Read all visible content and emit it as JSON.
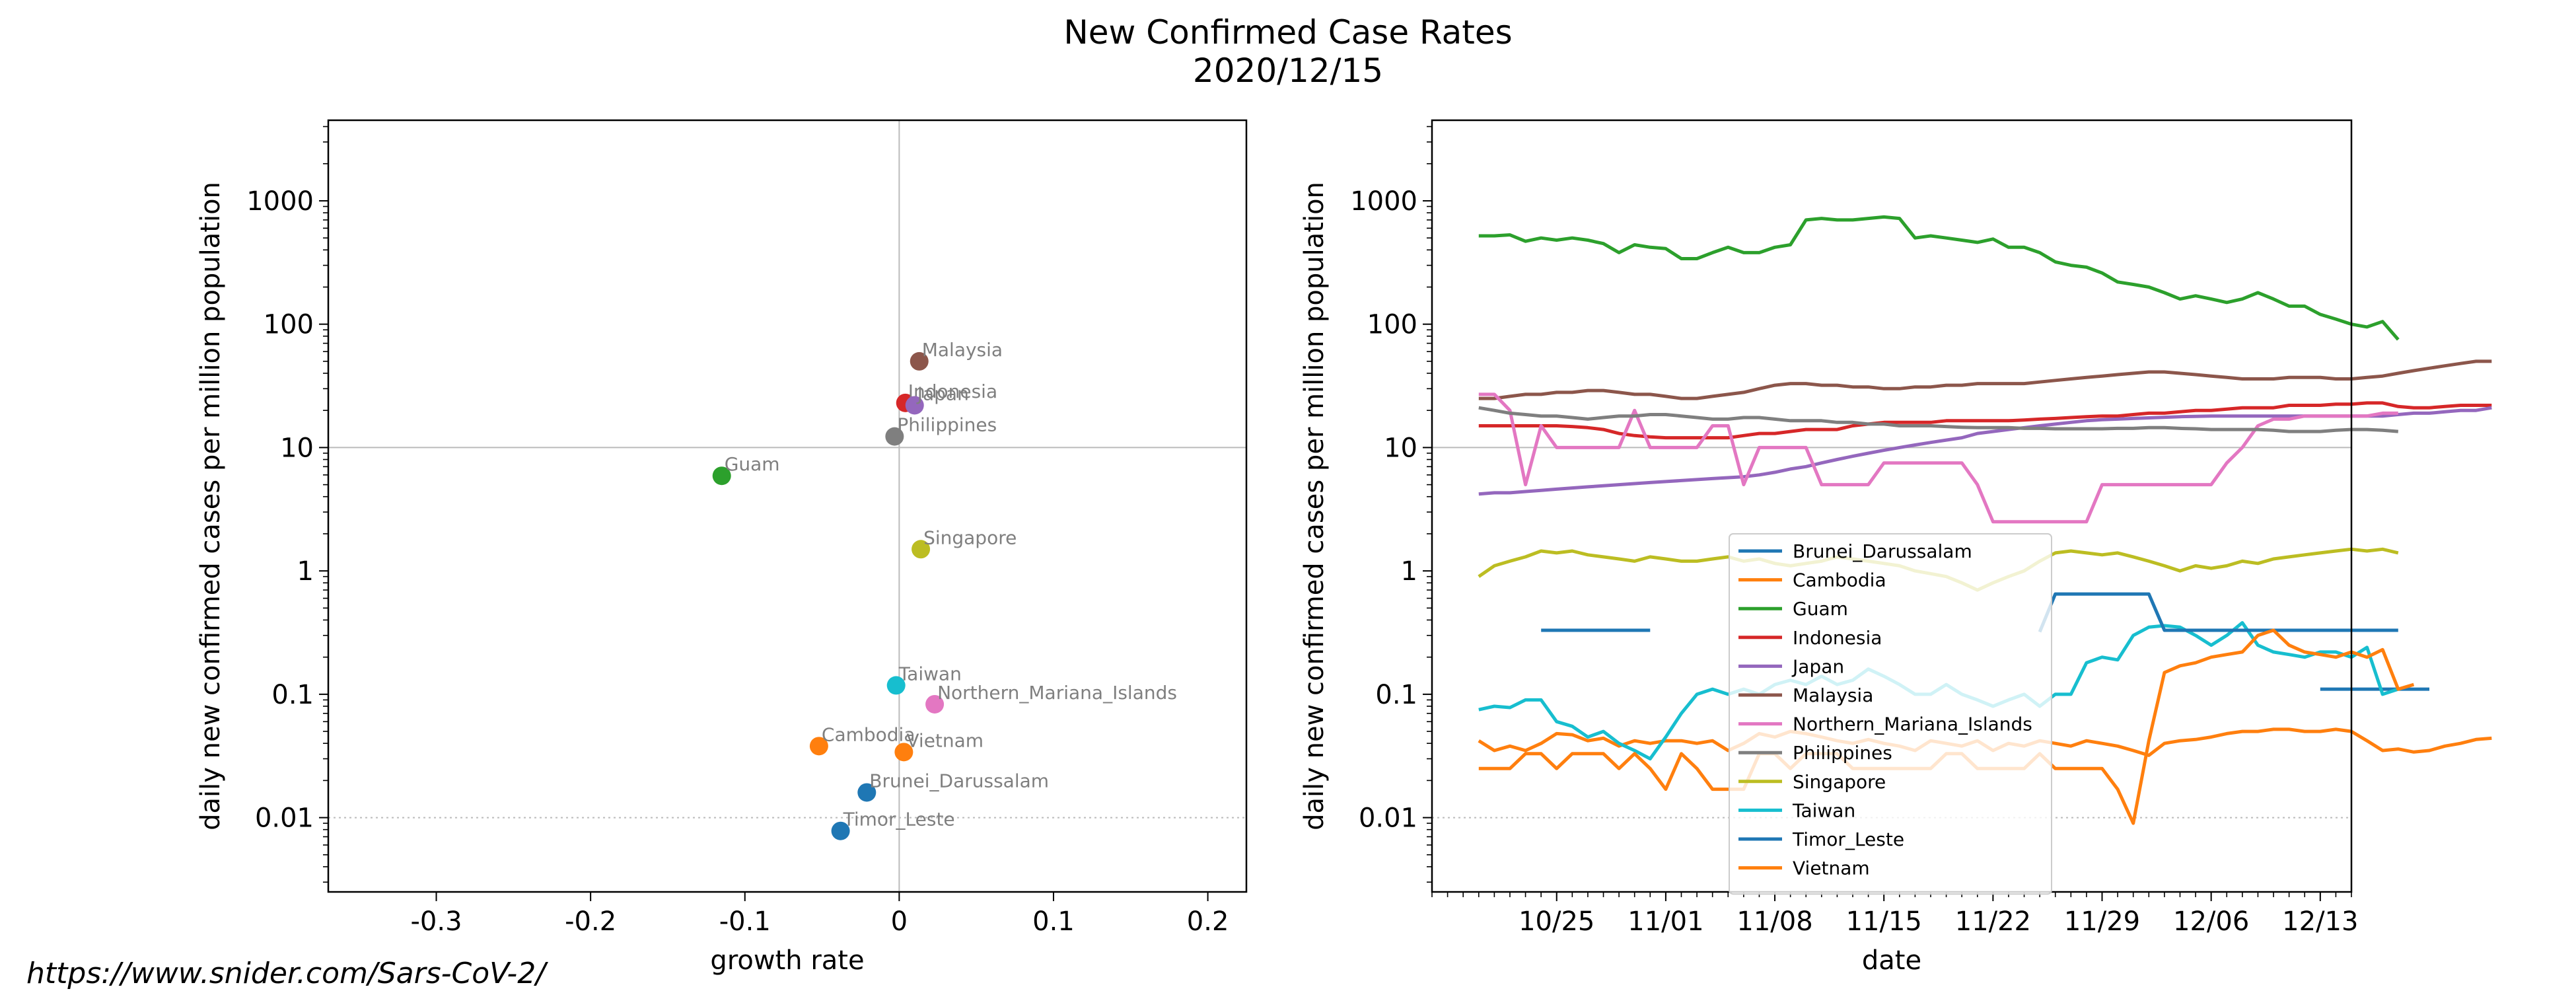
{
  "figure": {
    "title": "New Confirmed Case Rates",
    "subtitle": "2020/12/15",
    "source": "https://www.snider.com/Sars-CoV-2/"
  },
  "chart_data": [
    {
      "type": "scatter",
      "xlabel": "growth rate",
      "ylabel": "daily new confirmed cases per million population",
      "xlim": [
        -0.37,
        0.225
      ],
      "ylim": [
        0.0025,
        4500
      ],
      "yscale": "log",
      "xticks": [
        -0.3,
        -0.2,
        -0.1,
        0,
        0.1,
        0.2
      ],
      "yticks": [
        0.01,
        0.1,
        1,
        10,
        100,
        1000
      ],
      "ytick_labels": [
        "0.01",
        "0.1",
        "1",
        "10",
        "100",
        "1000"
      ],
      "reference_lines": {
        "x": 0,
        "y": 10
      },
      "points": [
        {
          "label": "Malaysia",
          "x": 0.013,
          "y": 50,
          "color": "#8c564b"
        },
        {
          "label": "Indonesia",
          "x": 0.004,
          "y": 23,
          "color": "#d62728"
        },
        {
          "label": "Japan",
          "x": 0.01,
          "y": 22,
          "color": "#9467bd"
        },
        {
          "label": "Philippines",
          "x": -0.003,
          "y": 12.3,
          "color": "#7f7f7f"
        },
        {
          "label": "Guam",
          "x": -0.115,
          "y": 5.9,
          "color": "#2ca02c"
        },
        {
          "label": "Singapore",
          "x": 0.014,
          "y": 1.5,
          "color": "#bcbd22"
        },
        {
          "label": "Taiwan",
          "x": -0.002,
          "y": 0.118,
          "color": "#17becf"
        },
        {
          "label": "Northern_Mariana_Islands",
          "x": 0.023,
          "y": 0.083,
          "color": "#e377c2"
        },
        {
          "label": "Cambodia",
          "x": -0.052,
          "y": 0.038,
          "color": "#ff7f0e"
        },
        {
          "label": "Vietnam",
          "x": 0.003,
          "y": 0.034,
          "color": "#ff7f0e"
        },
        {
          "label": "Brunei_Darussalam",
          "x": -0.021,
          "y": 0.016,
          "color": "#1f77b4"
        },
        {
          "label": "Timor_Leste",
          "x": -0.038,
          "y": 0.0078,
          "color": "#1f77b4"
        }
      ]
    },
    {
      "type": "line",
      "xlabel": "date",
      "ylabel": "daily new confirmed cases per million population",
      "x_start": "2020-10-20",
      "xlim": [
        "2020-10-17",
        "2020-12-15"
      ],
      "ylim": [
        0.0025,
        4500
      ],
      "yscale": "log",
      "xticks": [
        "2020-10-25",
        "2020-11-01",
        "2020-11-08",
        "2020-11-15",
        "2020-11-22",
        "2020-11-29",
        "2020-12-06",
        "2020-12-13"
      ],
      "xtick_labels": [
        "10/25",
        "11/01",
        "11/08",
        "11/15",
        "11/22",
        "11/29",
        "12/06",
        "12/13"
      ],
      "yticks": [
        0.01,
        0.1,
        1,
        10,
        100,
        1000
      ],
      "ytick_labels": [
        "0.01",
        "0.1",
        "1",
        "10",
        "100",
        "1000"
      ],
      "reference_lines": {
        "y": 10
      },
      "legend": "lower-center",
      "series": [
        {
          "name": "Brunei_Darussalam",
          "color": "#1f77b4",
          "values": [
            null,
            null,
            null,
            null,
            0.33,
            0.33,
            0.33,
            0.33,
            0.33,
            0.33,
            0.33,
            0.33,
            null,
            null,
            null,
            null,
            null,
            null,
            null,
            null,
            null,
            null,
            null,
            null,
            null,
            null,
            null,
            null,
            null,
            null,
            null,
            null,
            null,
            null,
            null,
            null,
            null,
            null,
            null,
            null,
            null,
            null,
            null,
            null,
            null,
            null,
            null,
            null,
            null,
            null,
            null,
            null,
            null,
            null,
            0.11,
            0.11,
            0.11,
            0.11,
            0.11,
            0.11,
            0.11,
            0.11,
            null,
            null,
            null,
            null
          ]
        },
        {
          "name": "Cambodia",
          "color": "#ff7f0e",
          "values": [
            0.042,
            0.035,
            0.038,
            0.035,
            0.04,
            0.048,
            0.047,
            0.042,
            0.044,
            0.038,
            0.042,
            0.04,
            0.042,
            0.042,
            0.04,
            0.042,
            0.035,
            0.04,
            0.048,
            0.045,
            0.05,
            0.048,
            0.045,
            0.042,
            0.04,
            0.043,
            0.04,
            0.038,
            0.035,
            0.042,
            0.04,
            0.038,
            0.042,
            0.035,
            0.04,
            0.038,
            0.042,
            0.04,
            0.038,
            0.042,
            0.04,
            0.038,
            0.035,
            0.032,
            0.04,
            0.042,
            0.043,
            0.045,
            0.048,
            0.05,
            0.05,
            0.052,
            0.052,
            0.05,
            0.05,
            0.052,
            0.05,
            0.042,
            0.035,
            0.036,
            0.034,
            0.035,
            0.038,
            0.04,
            0.043,
            0.044
          ]
        },
        {
          "name": "Guam",
          "color": "#2ca02c",
          "values": [
            520,
            520,
            530,
            470,
            500,
            480,
            500,
            480,
            450,
            380,
            440,
            420,
            410,
            340,
            340,
            380,
            420,
            380,
            380,
            420,
            440,
            700,
            720,
            700,
            700,
            720,
            740,
            720,
            500,
            520,
            500,
            480,
            460,
            490,
            420,
            420,
            380,
            320,
            300,
            290,
            260,
            220,
            210,
            200,
            180,
            160,
            170,
            160,
            150,
            160,
            180,
            160,
            140,
            140,
            120,
            110,
            100,
            95,
            105,
            75,
            null,
            null,
            null,
            null,
            null,
            null
          ]
        },
        {
          "name": "Indonesia",
          "color": "#d62728",
          "values": [
            15,
            15,
            15,
            15,
            15,
            15,
            14.8,
            14.5,
            14,
            13,
            12.5,
            12.2,
            12,
            12,
            12,
            12,
            12,
            12.5,
            13,
            13,
            13.5,
            14,
            14,
            14,
            15,
            15.5,
            16,
            16,
            16,
            16,
            16.5,
            16.5,
            16.5,
            16.5,
            16.5,
            16.7,
            17,
            17.2,
            17.5,
            17.8,
            18,
            18,
            18.5,
            19,
            19,
            19.5,
            20,
            20,
            20.5,
            21,
            21,
            21,
            22,
            22,
            22,
            22.5,
            22.5,
            23,
            23,
            21.5,
            21,
            21,
            21.5,
            22,
            22,
            22
          ]
        },
        {
          "name": "Japan",
          "color": "#9467bd",
          "values": [
            4.2,
            4.3,
            4.3,
            4.4,
            4.5,
            4.6,
            4.7,
            4.8,
            4.9,
            5.0,
            5.1,
            5.2,
            5.3,
            5.4,
            5.5,
            5.6,
            5.7,
            5.8,
            6.0,
            6.3,
            6.7,
            7.0,
            7.5,
            8.0,
            8.5,
            9.0,
            9.5,
            10,
            10.5,
            11,
            11.5,
            12,
            13,
            13.5,
            14,
            14.5,
            15,
            15.5,
            16,
            16.5,
            16.8,
            17,
            17.2,
            17.4,
            17.6,
            17.8,
            17.9,
            18,
            18,
            18,
            18,
            18,
            18,
            18,
            18,
            18,
            18,
            18,
            18,
            18.5,
            19,
            19,
            19.5,
            20,
            20,
            21
          ]
        },
        {
          "name": "Malaysia",
          "color": "#8c564b",
          "values": [
            25,
            25,
            26,
            27,
            27,
            28,
            28,
            29,
            29,
            28,
            27,
            27,
            26,
            25,
            25,
            26,
            27,
            28,
            30,
            32,
            33,
            33,
            32,
            32,
            31,
            31,
            30,
            30,
            31,
            31,
            32,
            32,
            33,
            33,
            33,
            33,
            34,
            35,
            36,
            37,
            38,
            39,
            40,
            41,
            41,
            40,
            39,
            38,
            37,
            36,
            36,
            36,
            37,
            37,
            37,
            36,
            36,
            37,
            38,
            40,
            42,
            44,
            46,
            48,
            50,
            50
          ]
        },
        {
          "name": "Northern_Mariana_Islands",
          "color": "#e377c2",
          "values": [
            27,
            27,
            20,
            5,
            15,
            10,
            10,
            10,
            10,
            10,
            20,
            10,
            10,
            10,
            10,
            15,
            15,
            5,
            10,
            10,
            10,
            10,
            5,
            5,
            5,
            5,
            7.5,
            7.5,
            7.5,
            7.5,
            7.5,
            7.5,
            5,
            2.5,
            2.5,
            2.5,
            2.5,
            2.5,
            2.5,
            2.5,
            5,
            5,
            5,
            5,
            5,
            5,
            5,
            5,
            7.5,
            10,
            15,
            17,
            17,
            18,
            18,
            18,
            18,
            18,
            19,
            19,
            null,
            null,
            null,
            null,
            null,
            null
          ]
        },
        {
          "name": "Philippines",
          "color": "#7f7f7f",
          "values": [
            21,
            20,
            19,
            18.5,
            18,
            18,
            17.5,
            17,
            17.5,
            18,
            18,
            18.5,
            18.5,
            18,
            17.5,
            17,
            17,
            17.5,
            17.5,
            17,
            16.5,
            16.5,
            16.5,
            16,
            16,
            15.5,
            15.5,
            15,
            15,
            15,
            14.8,
            14.6,
            14.5,
            14.5,
            14.5,
            14.3,
            14.3,
            14.2,
            14.2,
            14.2,
            14.2,
            14.3,
            14.3,
            14.5,
            14.5,
            14.3,
            14.2,
            14,
            14,
            14,
            14,
            13.8,
            13.5,
            13.5,
            13.5,
            13.8,
            14,
            14,
            13.8,
            13.5,
            null,
            null,
            null,
            null,
            null,
            null
          ]
        },
        {
          "name": "Singapore",
          "color": "#bcbd22",
          "values": [
            0.9,
            1.1,
            1.2,
            1.3,
            1.45,
            1.4,
            1.45,
            1.35,
            1.3,
            1.25,
            1.2,
            1.3,
            1.25,
            1.2,
            1.2,
            1.25,
            1.3,
            1.2,
            1.25,
            1.15,
            1.1,
            1.15,
            1.2,
            1.3,
            1.25,
            1.2,
            1.15,
            1.1,
            1.0,
            0.95,
            0.9,
            0.8,
            0.7,
            0.8,
            0.9,
            1.0,
            1.2,
            1.4,
            1.45,
            1.4,
            1.35,
            1.4,
            1.3,
            1.2,
            1.1,
            1.0,
            1.1,
            1.05,
            1.1,
            1.2,
            1.15,
            1.25,
            1.3,
            1.35,
            1.4,
            1.45,
            1.5,
            1.45,
            1.5,
            1.4,
            null,
            null,
            null,
            null,
            null,
            null
          ]
        },
        {
          "name": "Taiwan",
          "color": "#17becf",
          "values": [
            0.075,
            0.08,
            0.078,
            0.09,
            0.09,
            0.06,
            0.055,
            0.045,
            0.05,
            0.04,
            0.035,
            0.03,
            0.045,
            0.07,
            0.1,
            0.11,
            0.1,
            0.11,
            0.1,
            0.12,
            0.13,
            0.12,
            0.14,
            0.12,
            0.13,
            0.16,
            0.14,
            0.12,
            0.1,
            0.1,
            0.12,
            0.1,
            0.09,
            0.08,
            0.09,
            0.1,
            0.08,
            0.1,
            0.1,
            0.18,
            0.2,
            0.19,
            0.3,
            0.35,
            0.36,
            0.35,
            0.3,
            0.25,
            0.3,
            0.38,
            0.25,
            0.22,
            0.21,
            0.2,
            0.22,
            0.22,
            0.2,
            0.24,
            0.1,
            0.11,
            null,
            null,
            null,
            null,
            null,
            null
          ]
        },
        {
          "name": "Timor_Leste",
          "color": "#1f77b4",
          "values": [
            null,
            null,
            null,
            null,
            null,
            null,
            null,
            null,
            null,
            null,
            null,
            null,
            null,
            null,
            null,
            null,
            null,
            null,
            null,
            null,
            null,
            null,
            null,
            null,
            null,
            null,
            null,
            null,
            null,
            null,
            null,
            null,
            null,
            null,
            null,
            null,
            0.32,
            0.65,
            0.65,
            0.65,
            0.65,
            0.65,
            0.65,
            0.65,
            0.33,
            0.33,
            0.33,
            0.33,
            0.33,
            0.33,
            0.33,
            0.33,
            0.33,
            0.33,
            0.33,
            0.33,
            0.33,
            0.33,
            0.33,
            0.33,
            null,
            null,
            null,
            null,
            null,
            null
          ]
        },
        {
          "name": "Vietnam",
          "color": "#ff7f0e",
          "values": [
            0.025,
            0.025,
            0.025,
            0.033,
            0.033,
            0.025,
            0.033,
            0.033,
            0.033,
            0.025,
            0.033,
            0.025,
            0.017,
            0.033,
            0.025,
            0.017,
            0.017,
            0.017,
            0.033,
            0.033,
            0.025,
            0.033,
            0.033,
            0.033,
            0.025,
            0.025,
            0.025,
            0.025,
            0.025,
            0.025,
            0.033,
            0.033,
            0.025,
            0.025,
            0.025,
            0.025,
            0.033,
            0.025,
            0.025,
            0.025,
            0.025,
            0.017,
            0.009,
            0.042,
            0.15,
            0.17,
            0.18,
            0.2,
            0.21,
            0.22,
            0.3,
            0.33,
            0.25,
            0.22,
            0.21,
            0.2,
            0.22,
            0.2,
            0.23,
            0.11,
            0.12,
            null,
            null,
            null,
            null,
            null
          ]
        }
      ]
    }
  ]
}
